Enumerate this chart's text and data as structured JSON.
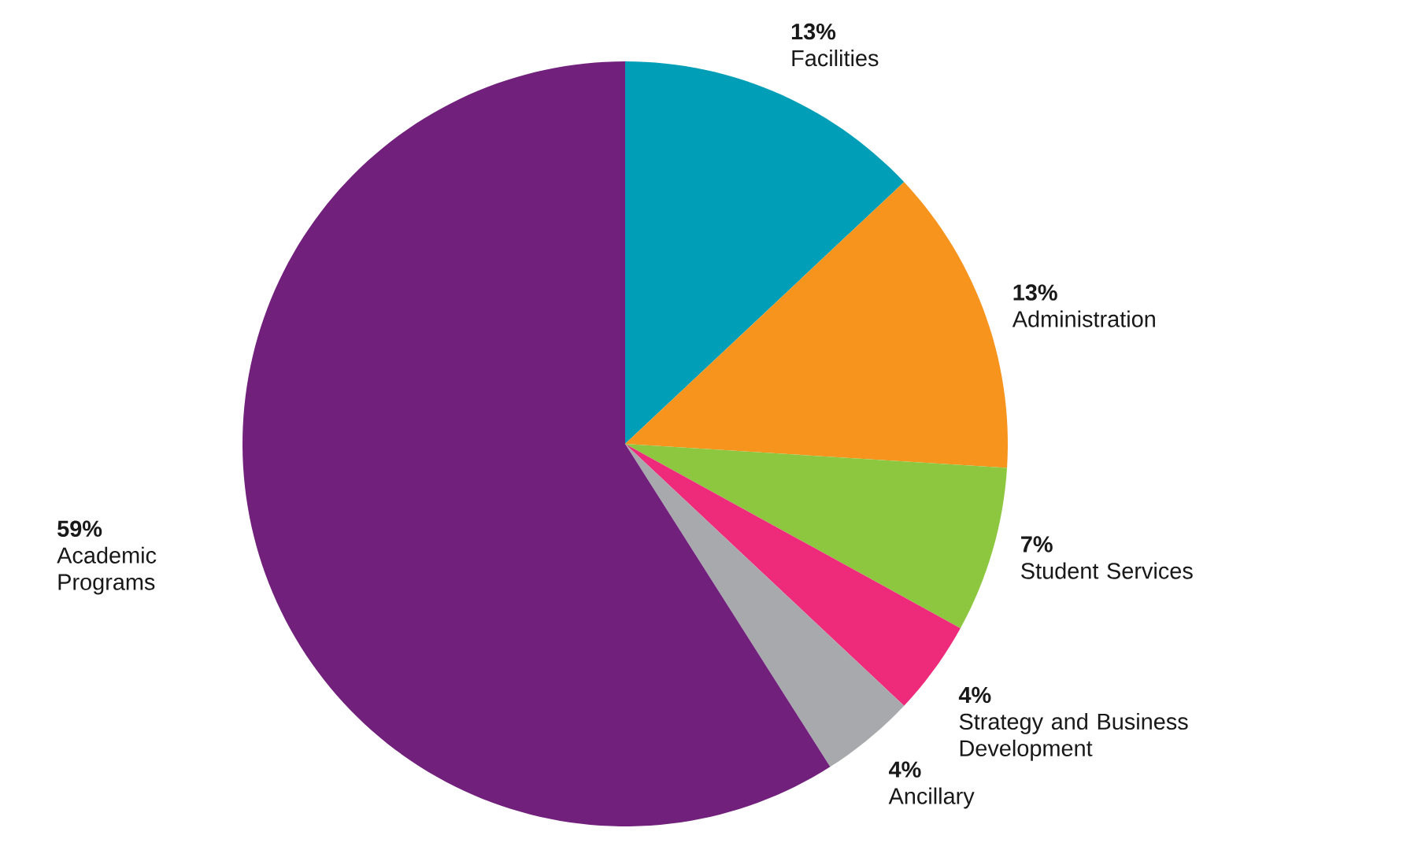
{
  "chart_data": {
    "type": "pie",
    "categories": [
      "Facilities",
      "Administration",
      "Student Services",
      "Strategy and Business Development",
      "Ancillary",
      "Academic Programs"
    ],
    "values": [
      13,
      13,
      7,
      4,
      4,
      59
    ],
    "value_labels": [
      "13%",
      "13%",
      "7%",
      "4%",
      "4%",
      "59%"
    ],
    "colors": [
      "#009fb7",
      "#f7941d",
      "#8dc63f",
      "#ee2a7b",
      "#a7a9ac",
      "#71217c"
    ]
  }
}
